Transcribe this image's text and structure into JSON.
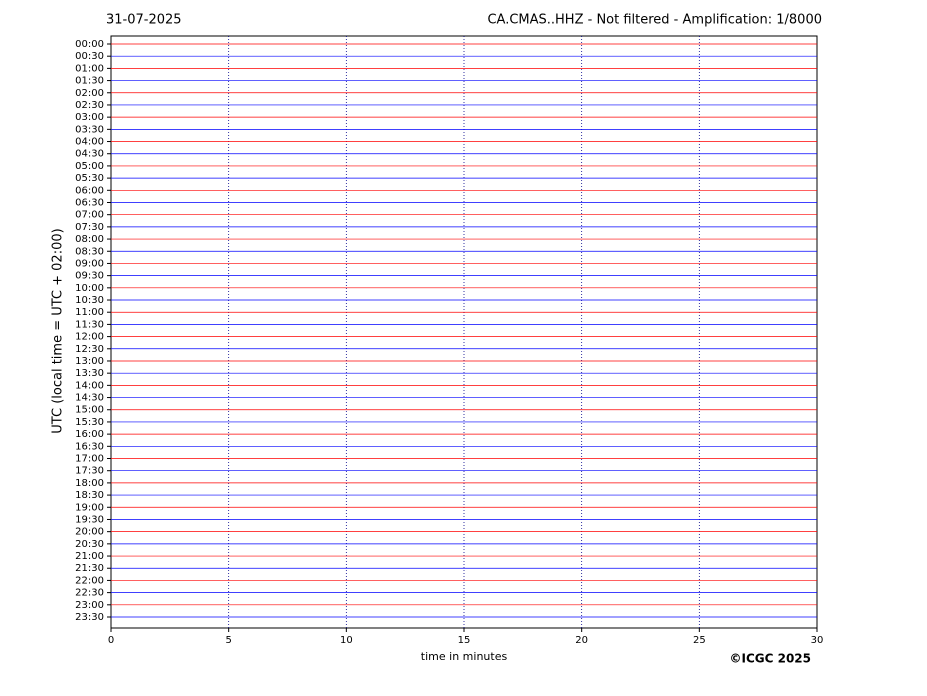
{
  "chart_data": {
    "type": "helicorder",
    "title_left": "31-07-2025",
    "title": "CA.CMAS..HHZ - Not filtered - Amplification: 1/8000",
    "y_label": "UTC (local time = UTC + 02:00)",
    "x_label": "time in minutes",
    "copyright": "©ICGC 2025",
    "categories": [
      "00:00",
      "00:30",
      "01:00",
      "01:30",
      "02:00",
      "02:30",
      "03:00",
      "03:30",
      "04:00",
      "04:30",
      "05:00",
      "05:30",
      "06:00",
      "06:30",
      "07:00",
      "07:30",
      "08:00",
      "08:30",
      "09:00",
      "09:30",
      "10:00",
      "10:30",
      "11:00",
      "11:30",
      "12:00",
      "12:30",
      "13:00",
      "13:30",
      "14:00",
      "14:30",
      "15:00",
      "15:30",
      "16:00",
      "16:30",
      "17:00",
      "17:30",
      "18:00",
      "18:30",
      "19:00",
      "19:30",
      "20:00",
      "20:30",
      "21:00",
      "21:30",
      "22:00",
      "22:30",
      "23:00",
      "23:30"
    ],
    "colors": [
      "#ff0000",
      "#0000ff"
    ],
    "xlim": [
      0,
      30
    ],
    "xticks": [
      0,
      5,
      10,
      15,
      20,
      25,
      30
    ],
    "grid": true
  }
}
